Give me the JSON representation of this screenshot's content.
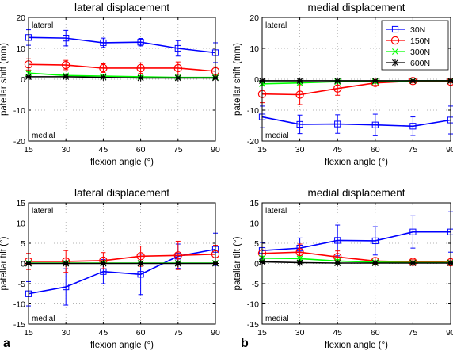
{
  "panel_labels": [
    "a",
    "b"
  ],
  "legend": {
    "entries": [
      {
        "name": "30N",
        "color": "#0000ff",
        "marker": "square"
      },
      {
        "name": "150N",
        "color": "#ff0000",
        "marker": "circle"
      },
      {
        "name": "300N",
        "color": "#00ff00",
        "marker": "x"
      },
      {
        "name": "600N",
        "color": "#000000",
        "marker": "star"
      }
    ]
  },
  "chart_data": [
    {
      "type": "line",
      "title": "lateral displacement",
      "xlabel": "flexion angle (°)",
      "ylabel": "patellar shift (mm)",
      "corner_top": "lateral",
      "corner_bottom": "medial",
      "x": [
        15,
        30,
        45,
        60,
        75,
        90
      ],
      "xlim": [
        15,
        90
      ],
      "ylim": [
        -20,
        20
      ],
      "xticks": [
        15,
        30,
        45,
        60,
        75,
        90
      ],
      "yticks": [
        -20,
        -10,
        0,
        10,
        20
      ],
      "grid": true,
      "series": [
        {
          "name": "30N",
          "color": "#0000ff",
          "marker": "square",
          "values": [
            13.5,
            13.3,
            11.8,
            12.0,
            10.0,
            8.6
          ],
          "errors": [
            2.5,
            2.5,
            1.5,
            1.2,
            2.5,
            3.2
          ]
        },
        {
          "name": "150N",
          "color": "#ff0000",
          "marker": "circle",
          "values": [
            4.8,
            4.6,
            3.6,
            3.6,
            3.6,
            2.6
          ],
          "errors": [
            1.8,
            1.5,
            1.4,
            1.7,
            2.0,
            1.4
          ]
        },
        {
          "name": "300N",
          "color": "#00ff00",
          "marker": "x",
          "values": [
            2.0,
            1.2,
            1.0,
            0.8,
            0.6,
            0.6
          ],
          "errors": [
            0.4,
            0.3,
            0.3,
            0.3,
            0.3,
            0.3
          ]
        },
        {
          "name": "600N",
          "color": "#000000",
          "marker": "star",
          "values": [
            0.8,
            0.8,
            0.6,
            0.4,
            0.4,
            0.4
          ],
          "errors": [
            0.2,
            0.2,
            0.2,
            0.2,
            0.2,
            0.2
          ]
        }
      ]
    },
    {
      "type": "line",
      "title": "medial displacement",
      "xlabel": "flexion angle (°)",
      "ylabel": "patellar shift (mm)",
      "corner_top": "lateral",
      "corner_bottom": "medial",
      "x": [
        15,
        30,
        45,
        60,
        75,
        90
      ],
      "xlim": [
        15,
        90
      ],
      "ylim": [
        -20,
        20
      ],
      "xticks": [
        15,
        30,
        45,
        60,
        75,
        90
      ],
      "yticks": [
        -20,
        -10,
        0,
        10,
        20
      ],
      "grid": true,
      "legend_position": "top-right",
      "series": [
        {
          "name": "30N",
          "color": "#0000ff",
          "marker": "square",
          "values": [
            -12.2,
            -14.6,
            -14.5,
            -14.8,
            -15.2,
            -13.2
          ],
          "errors": [
            3.5,
            3.0,
            3.0,
            3.5,
            3.0,
            4.5
          ]
        },
        {
          "name": "150N",
          "color": "#ff0000",
          "marker": "circle",
          "values": [
            -4.8,
            -5.0,
            -3.0,
            -1.2,
            -0.6,
            -0.8
          ],
          "errors": [
            2.8,
            3.2,
            2.2,
            0.8,
            0.5,
            0.4
          ]
        },
        {
          "name": "300N",
          "color": "#00ff00",
          "marker": "x",
          "values": [
            -1.5,
            -1.2,
            -0.8,
            -0.8,
            -0.5,
            -0.5
          ],
          "errors": [
            0.4,
            0.4,
            0.3,
            0.3,
            0.3,
            0.3
          ]
        },
        {
          "name": "600N",
          "color": "#000000",
          "marker": "star",
          "values": [
            -0.5,
            -0.5,
            -0.5,
            -0.5,
            -0.5,
            -0.5
          ],
          "errors": [
            0.2,
            0.2,
            0.2,
            0.2,
            0.2,
            0.2
          ]
        }
      ]
    },
    {
      "type": "line",
      "title": "lateral displacement",
      "xlabel": "flexion angle (°)",
      "ylabel": "patellar tilt (°)",
      "corner_top": "lateral",
      "corner_bottom": "medial",
      "x": [
        15,
        30,
        45,
        60,
        75,
        90
      ],
      "xlim": [
        15,
        90
      ],
      "ylim": [
        -15,
        15
      ],
      "xticks": [
        15,
        30,
        45,
        60,
        75,
        90
      ],
      "yticks": [
        -15,
        -10,
        -5,
        0,
        5,
        10,
        15
      ],
      "grid": true,
      "series": [
        {
          "name": "30N",
          "color": "#0000ff",
          "marker": "square",
          "values": [
            -7.5,
            -5.8,
            -2.0,
            -2.7,
            1.8,
            3.5
          ],
          "errors": [
            3.0,
            4.5,
            3.0,
            5.0,
            3.0,
            4.0
          ]
        },
        {
          "name": "150N",
          "color": "#ff0000",
          "marker": "circle",
          "values": [
            0.5,
            0.5,
            0.7,
            1.8,
            2.0,
            2.3
          ],
          "errors": [
            2.0,
            2.7,
            2.0,
            2.5,
            3.5,
            2.2
          ]
        },
        {
          "name": "300N",
          "color": "#00ff00",
          "marker": "x",
          "values": [
            0.1,
            0.1,
            0.1,
            0.1,
            0.1,
            0.1
          ],
          "errors": [
            0.3,
            0.3,
            0.3,
            0.3,
            0.3,
            0.3
          ]
        },
        {
          "name": "600N",
          "color": "#000000",
          "marker": "star",
          "values": [
            0.0,
            0.0,
            0.0,
            0.0,
            0.0,
            0.0
          ],
          "errors": [
            0.2,
            0.2,
            0.2,
            0.2,
            0.2,
            0.2
          ]
        }
      ]
    },
    {
      "type": "line",
      "title": "medial displacement",
      "xlabel": "flexion angle (°)",
      "ylabel": "patellar tilt (°)",
      "corner_top": "lateral",
      "corner_bottom": "medial",
      "x": [
        15,
        30,
        45,
        60,
        75,
        90
      ],
      "xlim": [
        15,
        90
      ],
      "ylim": [
        -15,
        15
      ],
      "xticks": [
        15,
        30,
        45,
        60,
        75,
        90
      ],
      "yticks": [
        -15,
        -10,
        -5,
        0,
        5,
        10,
        15
      ],
      "grid": true,
      "series": [
        {
          "name": "30N",
          "color": "#0000ff",
          "marker": "square",
          "values": [
            3.2,
            3.8,
            5.7,
            5.6,
            7.8,
            7.8
          ],
          "errors": [
            2.0,
            2.5,
            3.8,
            3.5,
            4.0,
            5.0
          ]
        },
        {
          "name": "150N",
          "color": "#ff0000",
          "marker": "circle",
          "values": [
            2.5,
            2.8,
            1.6,
            0.6,
            0.4,
            0.3
          ],
          "errors": [
            1.8,
            2.0,
            1.5,
            0.8,
            0.5,
            0.4
          ]
        },
        {
          "name": "300N",
          "color": "#00ff00",
          "marker": "x",
          "values": [
            1.3,
            1.2,
            0.6,
            0.3,
            0.2,
            0.2
          ],
          "errors": [
            0.5,
            0.5,
            0.4,
            0.3,
            0.3,
            0.3
          ]
        },
        {
          "name": "600N",
          "color": "#000000",
          "marker": "star",
          "values": [
            0.4,
            0.2,
            0.1,
            0.1,
            0.1,
            0.1
          ],
          "errors": [
            0.2,
            0.2,
            0.2,
            0.2,
            0.2,
            0.2
          ]
        }
      ]
    }
  ]
}
